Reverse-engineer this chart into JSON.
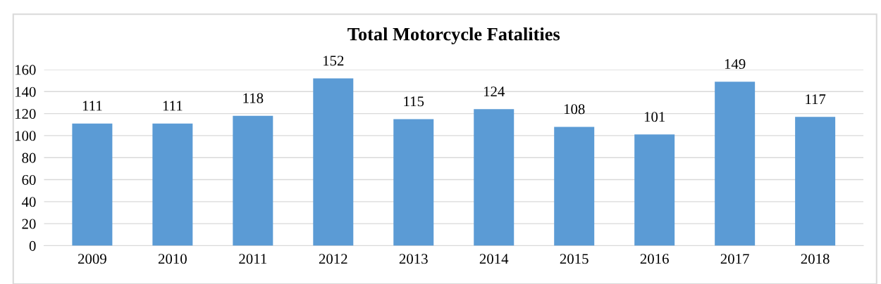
{
  "chart_data": {
    "type": "bar",
    "title": "Total Motorcycle Fatalities",
    "categories": [
      "2009",
      "2010",
      "2011",
      "2012",
      "2013",
      "2014",
      "2015",
      "2016",
      "2017",
      "2018"
    ],
    "values": [
      111,
      111,
      118,
      152,
      115,
      124,
      108,
      101,
      149,
      117
    ],
    "color": "#5b9bd5",
    "ylim": [
      0,
      160
    ],
    "yticks": [
      0,
      20,
      40,
      60,
      80,
      100,
      120,
      140,
      160
    ],
    "grid": "y",
    "data_labels": true
  }
}
